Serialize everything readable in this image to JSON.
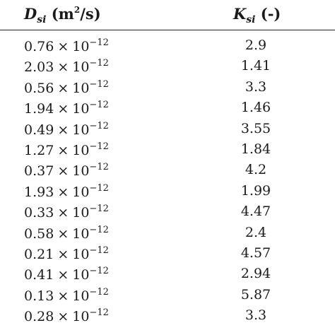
{
  "table": {
    "header": {
      "col1": {
        "symbol": "D",
        "subscript": "si",
        "unit_open": "(m",
        "unit_sup": "2",
        "unit_close": "/s)"
      },
      "col2": {
        "symbol": "K",
        "subscript": "si",
        "unit": "(-)"
      }
    },
    "rows": [
      {
        "d_mantissa": "0.76",
        "times": "×",
        "base": "10",
        "exponent": "−12",
        "k": "2.9"
      },
      {
        "d_mantissa": "2.03",
        "times": "×",
        "base": "10",
        "exponent": "−12",
        "k": "1.41"
      },
      {
        "d_mantissa": "0.56",
        "times": "×",
        "base": "10",
        "exponent": "−12",
        "k": "3.3"
      },
      {
        "d_mantissa": "1.94",
        "times": "×",
        "base": "10",
        "exponent": "−12",
        "k": "1.46"
      },
      {
        "d_mantissa": "0.49",
        "times": "×",
        "base": "10",
        "exponent": "−12",
        "k": "3.55"
      },
      {
        "d_mantissa": "1.27",
        "times": "×",
        "base": "10",
        "exponent": "−12",
        "k": "1.84"
      },
      {
        "d_mantissa": "0.37",
        "times": "×",
        "base": "10",
        "exponent": "−12",
        "k": "4.2"
      },
      {
        "d_mantissa": "1.93",
        "times": "×",
        "base": "10",
        "exponent": "−12",
        "k": "1.99"
      },
      {
        "d_mantissa": "0.33",
        "times": "×",
        "base": "10",
        "exponent": "−12",
        "k": "4.47"
      },
      {
        "d_mantissa": "0.58",
        "times": "×",
        "base": "10",
        "exponent": "−12",
        "k": "2.4"
      },
      {
        "d_mantissa": "0.21",
        "times": "×",
        "base": "10",
        "exponent": "−12",
        "k": "4.57"
      },
      {
        "d_mantissa": "0.41",
        "times": "×",
        "base": "10",
        "exponent": "−12",
        "k": "2.94"
      },
      {
        "d_mantissa": "0.13",
        "times": "×",
        "base": "10",
        "exponent": "−12",
        "k": "5.87"
      },
      {
        "d_mantissa": "0.28",
        "times": "×",
        "base": "10",
        "exponent": "−12",
        "k": "3.3"
      }
    ]
  }
}
